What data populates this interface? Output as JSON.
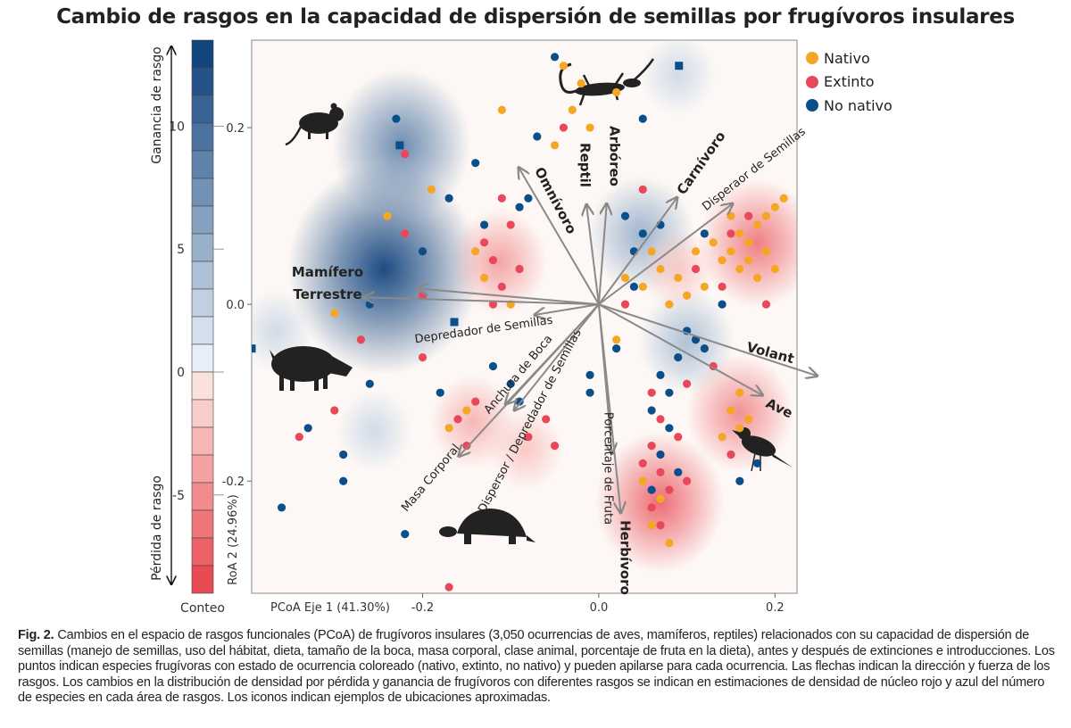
{
  "title": "Cambio de rasgos en la capacidad de dispersión de semillas por frugívoros insulares",
  "legend": [
    {
      "label": "Nativo",
      "color": "#f5a623"
    },
    {
      "label": "Extinto",
      "color": "#e8485a"
    },
    {
      "label": "No nativo",
      "color": "#0b4f8a"
    }
  ],
  "caption": {
    "label": "Fig. 2.",
    "text": " Cambios en el espacio de rasgos funcionales (PCoA) de frugívoros insulares (3,050 ocurrencias de aves, mamíferos, reptiles) relacionados con su capacidad de dispersión de semillas (manejo de semillas, uso del hábitat, dieta, tamaño de la boca, masa corporal, clase animal, porcentaje de fruta en la dieta), antes y después de extinciones e introducciones. Los puntos indican especies frugívoras con estado de ocurrencia coloreado (nativo, extinto, no nativo) y pueden apilarse para cada ocurrencia. Las flechas indican la dirección y fuerza de los rasgos. Los cambios en la distribución de densidad por pérdida y ganancia de frugívoros con diferentes rasgos se indican en estimaciones de densidad de núcleo rojo y azul del número de especies en cada área de rasgos. Los iconos indican ejemplos de ubicaciones aproximadas."
  },
  "chart_data": {
    "type": "scatter",
    "title": "Cambio de rasgos en la capacidad de dispersión de semillas por frugívoros insulares",
    "xlabel": "PCoA Eje 1  (41.30%)",
    "ylabel": "RoA 2  (24.96%)",
    "xlim": [
      -0.394,
      0.225
    ],
    "ylim": [
      -0.327,
      0.299
    ],
    "xticks": [
      -0.2,
      0.0,
      0.2
    ],
    "xtick_labels": [
      "-0.2",
      "0.0",
      "0.2"
    ],
    "yticks": [
      0.2,
      0.0,
      -0.2
    ],
    "ytick_labels": [
      "0.2",
      "0.0",
      "-0.2"
    ],
    "grid": false,
    "legend_position": "top-right",
    "colorbar": {
      "label": "Conteo",
      "range": [
        -9,
        13.5
      ],
      "ticks": [
        10,
        5,
        0,
        -5
      ],
      "tick_labels": [
        "10",
        "5",
        "0",
        "-5"
      ],
      "gain_label": "Ganancia de rasgo",
      "loss_label": "Pérdida de rasgo",
      "gain_color": "#0b4f8a",
      "loss_color": "#e8404a"
    },
    "series": [
      {
        "name": "Nativo",
        "color": "#f5a623",
        "points": [
          [
            0.15,
            0.1
          ],
          [
            0.16,
            0.08
          ],
          [
            0.17,
            0.07
          ],
          [
            0.18,
            0.09
          ],
          [
            0.19,
            0.06
          ],
          [
            0.2,
            0.11
          ],
          [
            0.21,
            0.12
          ],
          [
            0.14,
            0.05
          ],
          [
            0.16,
            0.04
          ],
          [
            0.18,
            0.03
          ],
          [
            0.17,
            0.05
          ],
          [
            0.15,
            0.06
          ],
          [
            0.19,
            0.1
          ],
          [
            0.2,
            0.04
          ],
          [
            0.13,
            0.07
          ],
          [
            0.05,
            0.02
          ],
          [
            0.07,
            0.04
          ],
          [
            0.09,
            0.03
          ],
          [
            0.11,
            0.06
          ],
          [
            0.1,
            0.01
          ],
          [
            0.03,
            0.03
          ],
          [
            0.06,
            0.06
          ],
          [
            0.08,
            0.0
          ],
          [
            0.12,
            0.02
          ],
          [
            -0.04,
            0.27
          ],
          [
            -0.02,
            0.25
          ],
          [
            -0.03,
            0.22
          ],
          [
            -0.05,
            0.18
          ],
          [
            -0.01,
            0.2
          ],
          [
            0.02,
            0.24
          ],
          [
            0.15,
            -0.12
          ],
          [
            0.16,
            -0.14
          ],
          [
            0.17,
            -0.13
          ],
          [
            0.14,
            -0.15
          ],
          [
            0.16,
            -0.1
          ],
          [
            0.07,
            -0.22
          ],
          [
            0.06,
            -0.25
          ],
          [
            0.08,
            -0.27
          ],
          [
            0.05,
            -0.2
          ],
          [
            -0.14,
            0.06
          ],
          [
            -0.13,
            0.03
          ],
          [
            -0.15,
            -0.12
          ],
          [
            -0.17,
            -0.14
          ],
          [
            -0.24,
            0.1
          ],
          [
            -0.19,
            0.13
          ],
          [
            -0.11,
            0.22
          ],
          [
            0.02,
            -0.04
          ],
          [
            0.09,
            -0.06
          ],
          [
            -0.1,
            0.0
          ],
          [
            -0.3,
            -0.01
          ]
        ]
      },
      {
        "name": "Extinto",
        "color": "#e8485a",
        "points": [
          [
            0.06,
            -0.1
          ],
          [
            0.07,
            -0.13
          ],
          [
            0.06,
            -0.16
          ],
          [
            0.07,
            -0.19
          ],
          [
            0.08,
            -0.21
          ],
          [
            0.06,
            -0.23
          ],
          [
            0.07,
            -0.25
          ],
          [
            0.05,
            -0.18
          ],
          [
            0.09,
            -0.15
          ],
          [
            0.1,
            -0.2
          ],
          [
            0.17,
            0.1
          ],
          [
            0.15,
            0.08
          ],
          [
            0.14,
            0.02
          ],
          [
            0.19,
            0.0
          ],
          [
            0.11,
            0.04
          ],
          [
            -0.12,
            0.05
          ],
          [
            -0.11,
            0.02
          ],
          [
            -0.13,
            0.07
          ],
          [
            -0.1,
            0.09
          ],
          [
            -0.12,
            0.0
          ],
          [
            -0.09,
            0.04
          ],
          [
            -0.16,
            -0.13
          ],
          [
            -0.15,
            -0.16
          ],
          [
            -0.14,
            -0.11
          ],
          [
            -0.08,
            -0.15
          ],
          [
            -0.06,
            -0.13
          ],
          [
            -0.05,
            -0.16
          ],
          [
            -0.2,
            0.01
          ],
          [
            -0.22,
            0.08
          ],
          [
            -0.27,
            -0.04
          ],
          [
            -0.3,
            -0.12
          ],
          [
            -0.34,
            -0.15
          ],
          [
            -0.22,
            0.17
          ],
          [
            -0.11,
            0.12
          ],
          [
            -0.04,
            0.2
          ],
          [
            0.05,
            0.13
          ],
          [
            0.13,
            -0.07
          ],
          [
            0.15,
            -0.17
          ],
          [
            -0.17,
            -0.32
          ],
          [
            -0.2,
            -0.06
          ],
          [
            0.03,
            0.0
          ],
          [
            0.1,
            -0.09
          ]
        ]
      },
      {
        "name": "No nativo",
        "color": "#0b4f8a",
        "points": [
          [
            0.03,
            0.1
          ],
          [
            0.05,
            0.08
          ],
          [
            0.07,
            0.09
          ],
          [
            0.04,
            0.06
          ],
          [
            0.1,
            -0.03
          ],
          [
            0.11,
            -0.04
          ],
          [
            0.12,
            -0.05
          ],
          [
            0.09,
            -0.06
          ],
          [
            0.07,
            -0.08
          ],
          [
            0.08,
            -0.1
          ],
          [
            0.06,
            -0.12
          ],
          [
            0.08,
            -0.14
          ],
          [
            0.07,
            -0.17
          ],
          [
            0.09,
            -0.19
          ],
          [
            0.06,
            -0.21
          ],
          [
            0.14,
            0.0
          ],
          [
            0.12,
            0.08
          ],
          [
            0.04,
            0.02
          ],
          [
            -0.23,
            0.21
          ],
          [
            -0.17,
            0.12
          ],
          [
            -0.2,
            0.06
          ],
          [
            -0.14,
            0.16
          ],
          [
            -0.07,
            0.19
          ],
          [
            -0.09,
            0.11
          ],
          [
            -0.13,
            0.09
          ],
          [
            -0.26,
            0.0
          ],
          [
            -0.12,
            -0.07
          ],
          [
            -0.1,
            -0.09
          ],
          [
            -0.09,
            -0.11
          ],
          [
            -0.18,
            -0.1
          ],
          [
            -0.26,
            -0.09
          ],
          [
            -0.33,
            -0.14
          ],
          [
            -0.29,
            -0.2
          ],
          [
            -0.36,
            -0.23
          ],
          [
            -0.29,
            -0.17
          ],
          [
            -0.22,
            -0.26
          ],
          [
            -0.01,
            -0.08
          ],
          [
            -0.01,
            -0.1
          ],
          [
            0.05,
            0.21
          ],
          [
            0.02,
            -0.05
          ],
          [
            -0.05,
            0.28
          ],
          [
            0.18,
            -0.18
          ],
          [
            0.16,
            -0.2
          ],
          [
            -0.08,
            0.12
          ]
        ],
        "square_points": [
          [
            -0.394,
            -0.05
          ],
          [
            -0.226,
            0.18
          ],
          [
            -0.164,
            -0.02
          ],
          [
            0.091,
            0.27
          ]
        ]
      }
    ],
    "density_peaks": [
      {
        "x": -0.244,
        "y": 0.04,
        "value": 13
      },
      {
        "x": -0.224,
        "y": 0.18,
        "value": 8
      },
      {
        "x": 0.048,
        "y": 0.079,
        "value": 5
      },
      {
        "x": 0.1,
        "y": -0.042,
        "value": 4
      },
      {
        "x": -0.255,
        "y": -0.143,
        "value": 2
      },
      {
        "x": -0.366,
        "y": -0.03,
        "value": 2
      },
      {
        "x": 0.09,
        "y": 0.26,
        "value": 2
      },
      {
        "x": 0.18,
        "y": 0.069,
        "value": -6
      },
      {
        "x": 0.069,
        "y": -0.224,
        "value": -7
      },
      {
        "x": 0.16,
        "y": -0.123,
        "value": -5
      },
      {
        "x": -0.113,
        "y": 0.048,
        "value": -4
      },
      {
        "x": -0.143,
        "y": -0.133,
        "value": -3
      },
      {
        "x": -0.083,
        "y": -0.164,
        "value": -2
      },
      {
        "x": 0.09,
        "y": 0.04,
        "value": -2
      }
    ],
    "arrows": [
      {
        "label": "Mamífero Terrestre",
        "x": -0.267,
        "y": 0.008
      },
      {
        "label": "",
        "x": -0.206,
        "y": 0.018
      },
      {
        "label": "Omnívoro",
        "x": -0.091,
        "y": 0.155
      },
      {
        "label": "Reptil",
        "x": -0.014,
        "y": 0.113
      },
      {
        "label": "Arbóreo",
        "x": 0.009,
        "y": 0.114
      },
      {
        "label": "Carnívoro",
        "x": 0.089,
        "y": 0.121
      },
      {
        "label": "Disperaor de Semillas",
        "x": 0.152,
        "y": 0.114
      },
      {
        "label": "Volant",
        "x": 0.248,
        "y": -0.081
      },
      {
        "label": "Ave",
        "x": 0.186,
        "y": -0.103
      },
      {
        "label": "Herbívoro",
        "x": 0.025,
        "y": -0.236
      },
      {
        "label": "Porcentaje de Fruta",
        "x": 0.015,
        "y": -0.169
      },
      {
        "label": "Dispersor / Depredador de Semillas",
        "x": -0.096,
        "y": -0.12
      },
      {
        "label": "Anchura de Boca",
        "x": -0.106,
        "y": -0.113
      },
      {
        "label": "Masa Corporal",
        "x": -0.159,
        "y": -0.172
      },
      {
        "label": "Depredador de Semillas",
        "x": -0.073,
        "y": -0.012
      }
    ],
    "icons": [
      "rat-icon",
      "lizard-icon",
      "boar-icon",
      "tortoise-icon",
      "bird-icon"
    ]
  }
}
